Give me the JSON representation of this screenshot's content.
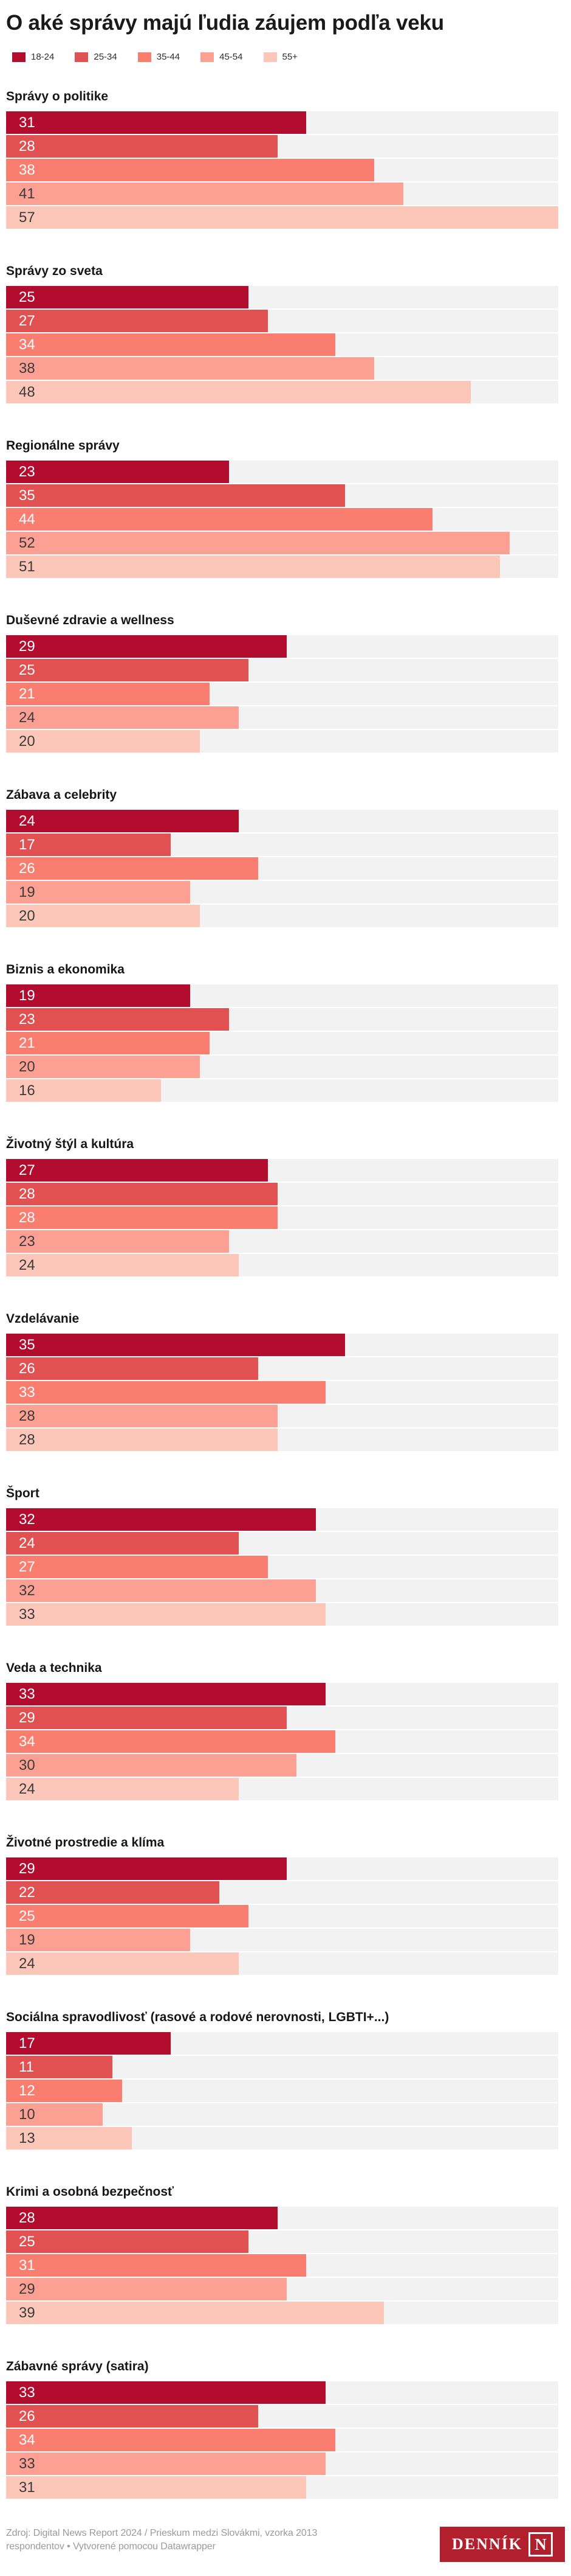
{
  "title": "O aké správy majú ľudia záujem podľa veku",
  "chart_data": {
    "type": "bar",
    "orientation": "horizontal",
    "title": "O aké správy majú ľudia záujem podľa veku",
    "legend_position": "top",
    "grid": false,
    "value_axis_max": 57,
    "track_color": "#f2f2f2",
    "categories": [
      "Správy o politike",
      "Správy zo sveta",
      "Regionálne správy",
      "Duševné zdravie a wellness",
      "Zábava a celebrity",
      "Biznis a ekonomika",
      "Životný štýl a kultúra",
      "Vzdelávanie",
      "Šport",
      "Veda a technika",
      "Životné prostredie a klíma",
      "Sociálna spravodlivosť (rasové a rodové nerovnosti, LGBTI+...)",
      "Krimi a osobná bezpečnosť",
      "Zábavné správy (satira)"
    ],
    "series": [
      {
        "name": "18-24",
        "color": "#b20d2e",
        "value_text_color": "#ffffff",
        "values": [
          31,
          25,
          23,
          29,
          24,
          19,
          27,
          35,
          32,
          33,
          29,
          17,
          28,
          33
        ]
      },
      {
        "name": "25-34",
        "color": "#e25151",
        "value_text_color": "#ffffff",
        "values": [
          28,
          27,
          35,
          25,
          17,
          23,
          28,
          26,
          24,
          29,
          22,
          11,
          25,
          26
        ]
      },
      {
        "name": "35-44",
        "color": "#f97e70",
        "value_text_color": "#ffffff",
        "values": [
          38,
          34,
          44,
          21,
          26,
          21,
          28,
          33,
          27,
          34,
          25,
          12,
          31,
          34
        ]
      },
      {
        "name": "45-54",
        "color": "#fba093",
        "value_text_color": "#3b3b3b",
        "values": [
          41,
          38,
          52,
          24,
          19,
          20,
          23,
          28,
          32,
          30,
          19,
          10,
          29,
          33
        ]
      },
      {
        "name": "55+",
        "color": "#fcc7b9",
        "value_text_color": "#3b3b3b",
        "values": [
          57,
          48,
          51,
          20,
          20,
          16,
          24,
          28,
          33,
          24,
          24,
          13,
          39,
          31
        ]
      }
    ]
  },
  "footer": {
    "source": "Zdroj: Digital News Report 2024 / Prieskum medzi Slovákmi, vzorka 2013 respondentov • Vytvorené pomocou Datawrapper"
  },
  "logo": {
    "wordmark": "DENNÍK",
    "n": "N",
    "background": "#b2202e"
  }
}
